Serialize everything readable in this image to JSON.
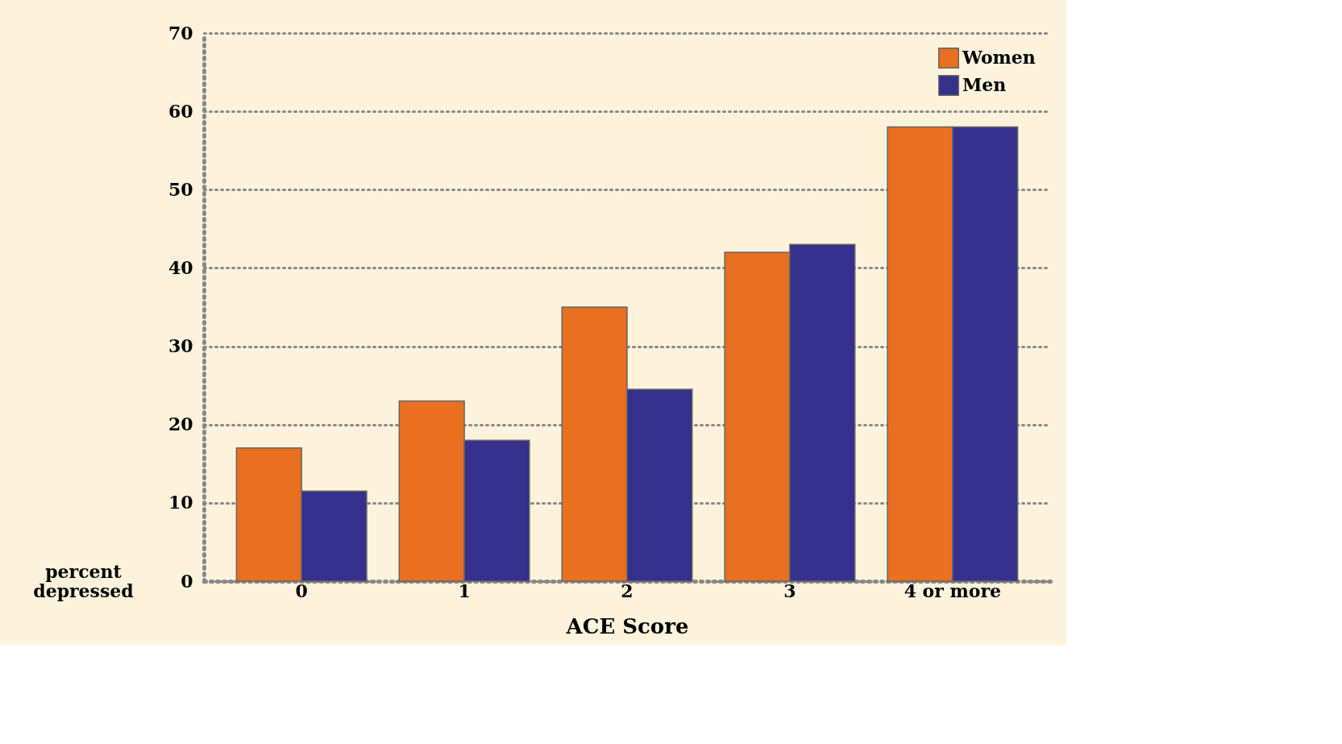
{
  "chart_data": {
    "type": "bar",
    "xlabel": "ACE Score",
    "ylabel": "percent depressed",
    "categories": [
      "0",
      "1",
      "2",
      "3",
      "4 or more"
    ],
    "series": [
      {
        "name": "Women",
        "color": "#e87020",
        "values": [
          17,
          23,
          35,
          42,
          58
        ]
      },
      {
        "name": "Men",
        "color": "#34308c",
        "values": [
          11.5,
          18,
          24.5,
          43,
          58
        ]
      }
    ],
    "ylim": [
      0,
      70
    ],
    "yticks": [
      0,
      10,
      20,
      30,
      40,
      50,
      60,
      70
    ],
    "grid": "y",
    "legend": "top right"
  }
}
